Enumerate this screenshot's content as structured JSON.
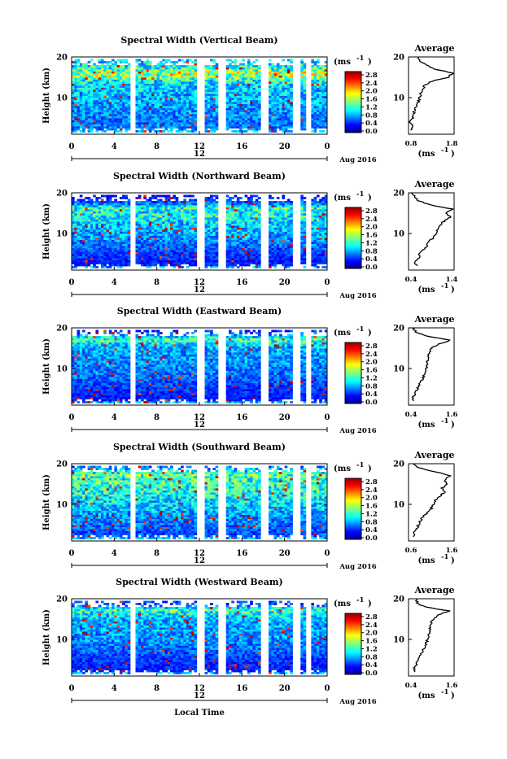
{
  "figure": {
    "xlabel": "Local Time",
    "ylabel": "Height (km)",
    "unit_label": "(ms",
    "unit_exp": "-1",
    "avg_title": "Average",
    "date_label": "Aug 2016",
    "day_label": "12",
    "xticks": [
      "0",
      "4",
      "8",
      "12",
      "16",
      "20",
      "0"
    ],
    "yticks": [
      "20",
      "10"
    ],
    "colorbar_ticks": [
      "2.8",
      "2.4",
      "2.0",
      "1.6",
      "1.2",
      "0.8",
      "0.4",
      "0.0"
    ]
  },
  "chart_data": [
    {
      "type": "heatmap",
      "title": "Spectral Width (Vertical Beam)",
      "xlabel": "",
      "ylabel": "Height (km)",
      "xlim": [
        0,
        24
      ],
      "ylim": [
        1,
        20
      ],
      "clim": [
        0.0,
        3.0
      ],
      "avg_profile": {
        "title": "Average",
        "xlabel": "(ms-1)",
        "xticks": [
          "0.8",
          "1.8"
        ],
        "xlim": [
          0.8,
          1.8
        ],
        "height": [
          2,
          3,
          4,
          5,
          6,
          7,
          8,
          9,
          10,
          11,
          12,
          13,
          14,
          15,
          16,
          17,
          18,
          19,
          20
        ],
        "value": [
          0.82,
          0.85,
          0.8,
          0.86,
          0.88,
          0.9,
          0.95,
          1.0,
          1.02,
          1.05,
          1.08,
          1.15,
          1.3,
          1.7,
          1.8,
          1.4,
          1.2,
          1.05,
          0.95
        ]
      }
    },
    {
      "type": "heatmap",
      "title": "Spectral Width (Northward Beam)",
      "xlabel": "",
      "ylabel": "Height (km)",
      "xlim": [
        0,
        24
      ],
      "ylim": [
        1,
        20
      ],
      "clim": [
        0.0,
        3.0
      ],
      "avg_profile": {
        "title": "Average",
        "xlabel": "(ms-1)",
        "xticks": [
          "0.4",
          "1.4"
        ],
        "xlim": [
          0.4,
          1.4
        ],
        "height": [
          2,
          3,
          4,
          5,
          6,
          7,
          8,
          9,
          10,
          11,
          12,
          13,
          14,
          15,
          16,
          17,
          18,
          19,
          20
        ],
        "value": [
          0.55,
          0.5,
          0.6,
          0.62,
          0.7,
          0.8,
          0.85,
          0.95,
          1.0,
          1.05,
          1.1,
          1.2,
          1.35,
          1.25,
          1.4,
          0.9,
          0.6,
          0.5,
          0.45
        ]
      }
    },
    {
      "type": "heatmap",
      "title": "Spectral Width (Eastward Beam)",
      "xlabel": "",
      "ylabel": "Height (km)",
      "xlim": [
        0,
        24
      ],
      "ylim": [
        1,
        20
      ],
      "clim": [
        0.0,
        3.0
      ],
      "avg_profile": {
        "title": "Average",
        "xlabel": "(ms-1)",
        "xticks": [
          "0.4",
          "1.6"
        ],
        "xlim": [
          0.4,
          1.6
        ],
        "height": [
          2,
          3,
          4,
          5,
          6,
          7,
          8,
          9,
          10,
          11,
          12,
          13,
          14,
          15,
          16,
          17,
          18,
          19,
          20
        ],
        "value": [
          0.5,
          0.48,
          0.55,
          0.6,
          0.65,
          0.72,
          0.78,
          0.82,
          0.85,
          0.88,
          0.9,
          0.92,
          0.95,
          1.0,
          1.2,
          1.55,
          0.85,
          0.55,
          0.5
        ]
      }
    },
    {
      "type": "heatmap",
      "title": "Spectral Width (Southward Beam)",
      "xlabel": "",
      "ylabel": "Height (km)",
      "xlim": [
        0,
        24
      ],
      "ylim": [
        1,
        20
      ],
      "clim": [
        0.0,
        3.0
      ],
      "avg_profile": {
        "title": "Average",
        "xlabel": "(ms-1)",
        "xticks": [
          "0.6",
          "1.6"
        ],
        "xlim": [
          0.6,
          1.6
        ],
        "height": [
          2,
          3,
          4,
          5,
          6,
          7,
          8,
          9,
          10,
          11,
          12,
          13,
          14,
          15,
          16,
          17,
          18,
          19,
          20
        ],
        "value": [
          0.7,
          0.68,
          0.75,
          0.8,
          0.85,
          0.9,
          1.0,
          1.1,
          1.15,
          1.2,
          1.3,
          1.4,
          1.35,
          1.5,
          1.4,
          1.55,
          1.2,
          0.8,
          0.65
        ]
      }
    },
    {
      "type": "heatmap",
      "title": "Spectral Width (Westward Beam)",
      "xlabel": "Local Time",
      "ylabel": "Height (km)",
      "xlim": [
        0,
        24
      ],
      "ylim": [
        1,
        20
      ],
      "clim": [
        0.0,
        3.0
      ],
      "avg_profile": {
        "title": "Average",
        "xlabel": "(ms-1)",
        "xticks": [
          "0.4",
          "1.6"
        ],
        "xlim": [
          0.4,
          1.6
        ],
        "height": [
          2,
          3,
          4,
          5,
          6,
          7,
          8,
          9,
          10,
          11,
          12,
          13,
          14,
          15,
          16,
          17,
          18,
          19,
          20
        ],
        "value": [
          0.55,
          0.52,
          0.58,
          0.62,
          0.68,
          0.75,
          0.8,
          0.85,
          0.9,
          0.92,
          0.95,
          0.98,
          1.0,
          1.05,
          1.2,
          1.5,
          0.8,
          0.6,
          0.55
        ]
      }
    }
  ]
}
